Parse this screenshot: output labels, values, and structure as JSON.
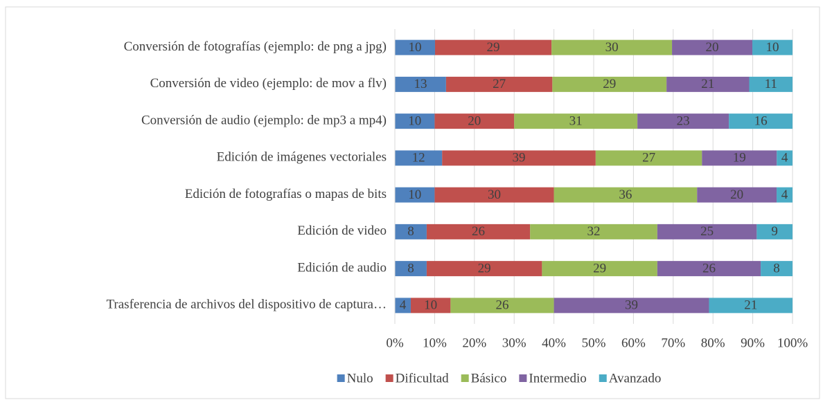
{
  "chart_data": {
    "type": "bar",
    "orientation": "horizontal",
    "stacking": "percent",
    "categories": [
      "Conversión de fotografías (ejemplo: de png a jpg)",
      "Conversión de video (ejemplo: de mov a flv)",
      "Conversión de audio (ejemplo: de mp3 a mp4)",
      "Edición de imágenes vectoriales",
      "Edición de fotografías o mapas de bits",
      "Edición de video",
      "Edición de audio",
      "Trasferencia de archivos del dispositivo de captura…"
    ],
    "series": [
      {
        "name": "Nulo",
        "color": "#4f81bd",
        "values": [
          10,
          13,
          10,
          12,
          10,
          8,
          8,
          4
        ]
      },
      {
        "name": "Dificultad",
        "color": "#c0504d",
        "values": [
          29,
          27,
          20,
          39,
          30,
          26,
          29,
          10
        ]
      },
      {
        "name": "Básico",
        "color": "#9bbb59",
        "values": [
          30,
          29,
          31,
          27,
          36,
          32,
          29,
          26
        ]
      },
      {
        "name": "Intermedio",
        "color": "#8064a2",
        "values": [
          20,
          21,
          23,
          19,
          20,
          25,
          26,
          39
        ]
      },
      {
        "name": "Avanzado",
        "color": "#4bacc6",
        "values": [
          10,
          11,
          16,
          4,
          4,
          9,
          8,
          21
        ]
      }
    ],
    "xlim": [
      0,
      100
    ],
    "xticks": [
      {
        "value": 0,
        "label": "0%"
      },
      {
        "value": 10,
        "label": "10%"
      },
      {
        "value": 20,
        "label": "20%"
      },
      {
        "value": 30,
        "label": "30%"
      },
      {
        "value": 40,
        "label": "40%"
      },
      {
        "value": 50,
        "label": "50%"
      },
      {
        "value": 60,
        "label": "60%"
      },
      {
        "value": 70,
        "label": "70%"
      },
      {
        "value": 80,
        "label": "80%"
      },
      {
        "value": 90,
        "label": "90%"
      },
      {
        "value": 100,
        "label": "100%"
      }
    ],
    "grid": true,
    "legend": "bottom",
    "data_labels": true
  }
}
